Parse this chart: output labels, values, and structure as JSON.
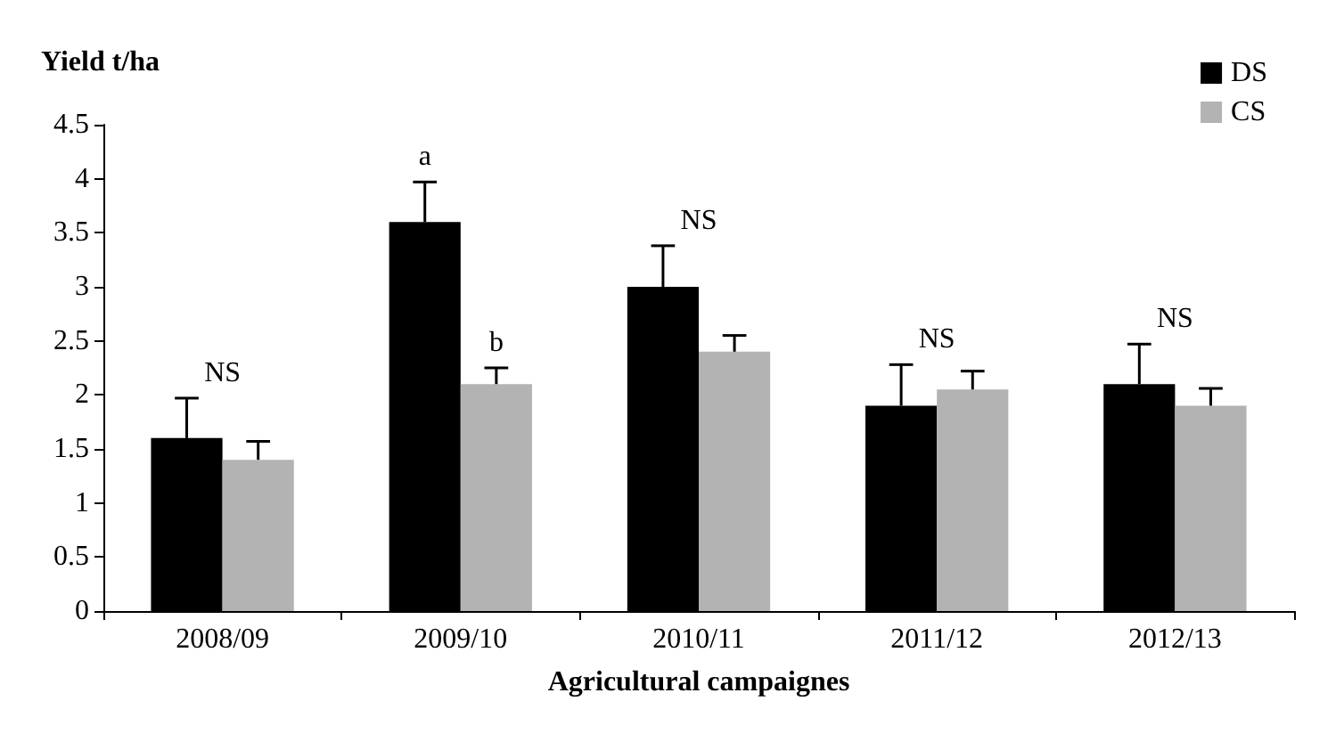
{
  "chart_data": {
    "type": "bar",
    "xlabel": "Agricultural campaignes",
    "ylabel": "Yield t/ha",
    "categories": [
      "2008/09",
      "2009/10",
      "2010/11",
      "2011/12",
      "2012/13"
    ],
    "series": [
      {
        "name": "DS",
        "color": "#000000",
        "values": [
          1.6,
          3.6,
          3.0,
          1.9,
          2.1
        ],
        "errors": [
          [
            1.6,
            1.97
          ],
          [
            3.6,
            3.97
          ],
          [
            3.0,
            3.38
          ],
          [
            1.9,
            2.28
          ],
          [
            2.1,
            2.47
          ]
        ]
      },
      {
        "name": "CS",
        "color": "#b3b3b3",
        "values": [
          1.4,
          2.1,
          2.4,
          2.05,
          1.9
        ],
        "errors": [
          [
            1.4,
            1.57
          ],
          [
            2.1,
            2.25
          ],
          [
            2.4,
            2.55
          ],
          [
            2.05,
            2.22
          ],
          [
            1.9,
            2.06
          ]
        ]
      }
    ],
    "annotations": [
      "NS",
      "a",
      "b",
      "NS",
      "NS",
      "NS"
    ],
    "ylim": [
      0,
      4.5
    ],
    "yticks": [
      0,
      0.5,
      1,
      1.5,
      2,
      2.5,
      3,
      3.5,
      4,
      4.5
    ],
    "grid": false,
    "legend": "top right"
  }
}
